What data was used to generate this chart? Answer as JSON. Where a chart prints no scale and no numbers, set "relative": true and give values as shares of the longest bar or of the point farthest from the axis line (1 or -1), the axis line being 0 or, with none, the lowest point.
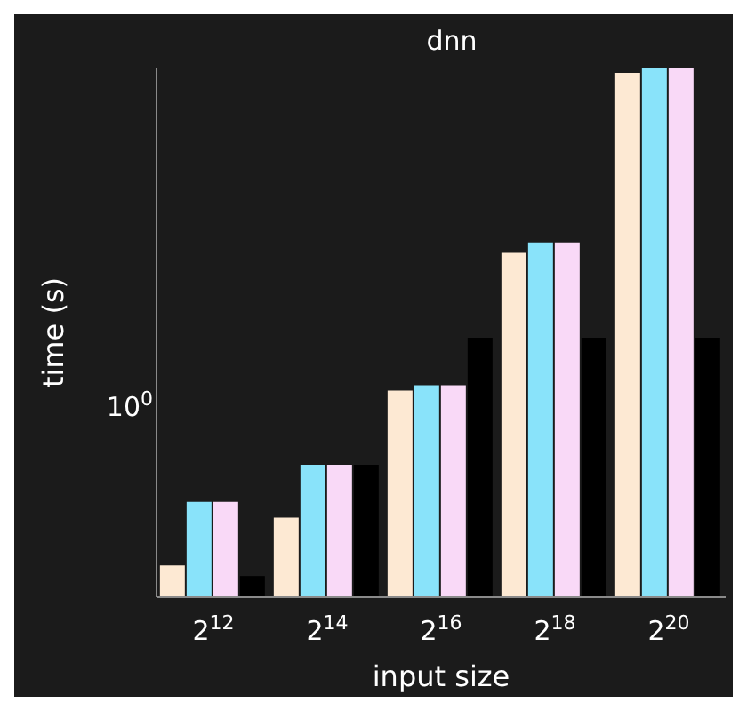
{
  "chart_data": {
    "type": "bar",
    "title": "dnn",
    "xlabel": "input size",
    "ylabel": "time (s)",
    "categories": [
      "2$^{12}$",
      "2$^{14}$",
      "2$^{16}$",
      "2$^{18}$",
      "2$^{20}$"
    ],
    "series": [
      {
        "color": "#fde9d3",
        "values": [
          0.06,
          0.15,
          0.39,
          0.65,
          0.99
        ]
      },
      {
        "color": "#89e3fa",
        "values": [
          0.18,
          0.25,
          0.4,
          0.67,
          1
        ]
      },
      {
        "color": "#f9d9f7",
        "values": [
          0.18,
          0.25,
          0.4,
          0.67,
          1
        ]
      },
      {
        "color": "#000000",
        "values": [
          0.04,
          0.25,
          0.49,
          0.49,
          0.49
        ]
      }
    ],
    "relative": true,
    "annotations": [
      "10$^{0}$"
    ]
  }
}
